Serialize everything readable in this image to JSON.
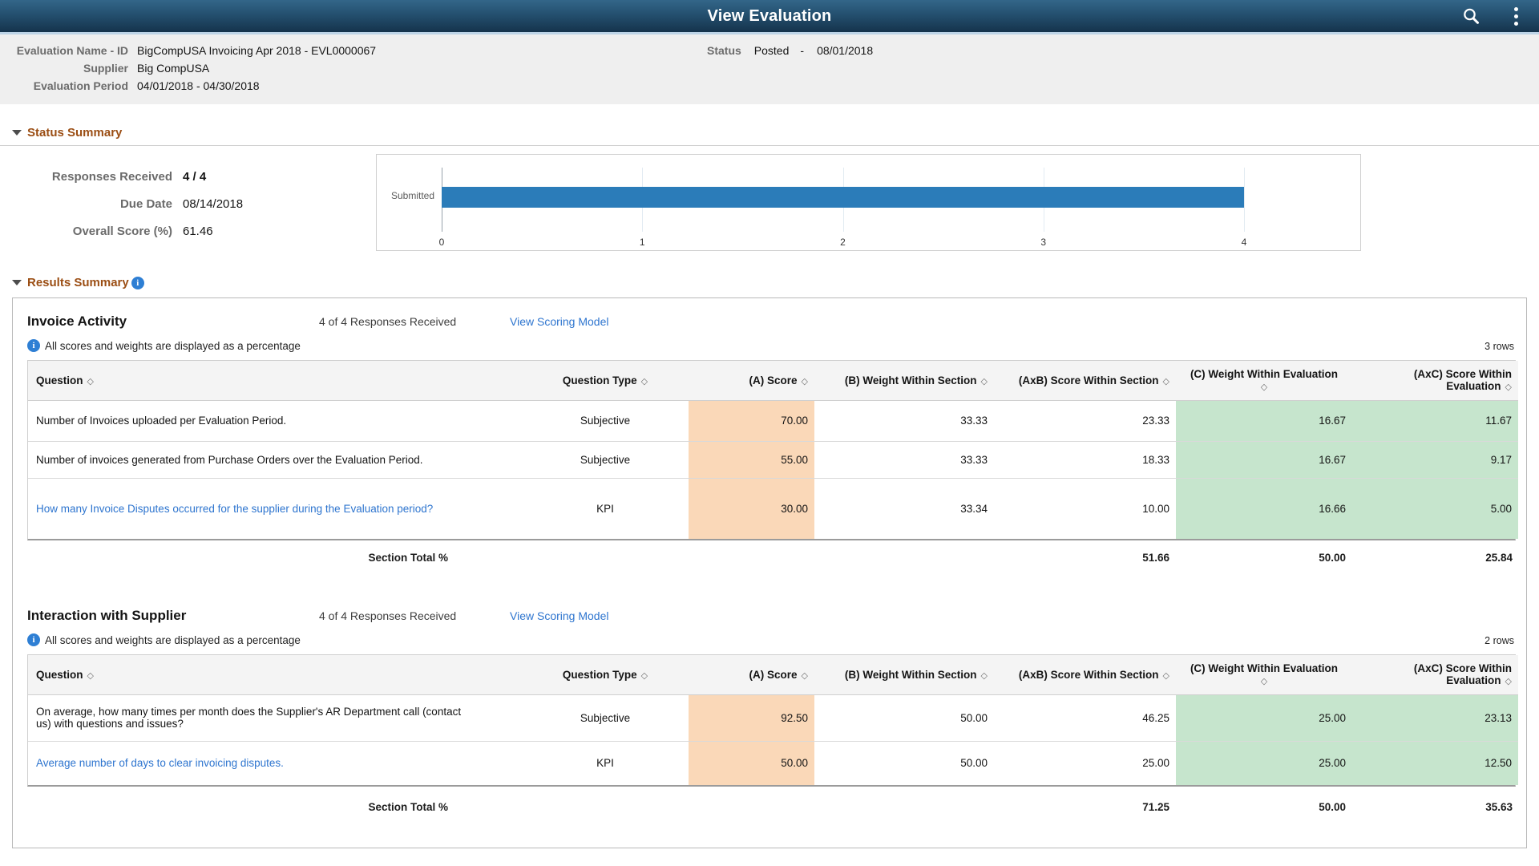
{
  "titlebar": {
    "title": "View Evaluation"
  },
  "icons": {
    "search": "search-icon",
    "more": "kebab-menu-icon",
    "info": "info-icon",
    "collapse": "triangle-down-icon",
    "sort": "sort-diamond-icon",
    "sort_glyph": "◇"
  },
  "info_header": {
    "rows": [
      {
        "label": "Evaluation Name - ID",
        "value": "BigCompUSA Invoicing Apr 2018 - EVL0000067"
      },
      {
        "label": "Supplier",
        "value": "Big CompUSA"
      },
      {
        "label": "Evaluation Period",
        "value": "04/01/2018 - 04/30/2018"
      }
    ],
    "status": {
      "label": "Status",
      "value": "Posted",
      "dash": "-",
      "date": "08/01/2018"
    }
  },
  "status_summary": {
    "heading": "Status Summary",
    "fields": [
      {
        "label": "Responses Received",
        "value": "4 / 4"
      },
      {
        "label": "Due Date",
        "value": "08/14/2018"
      },
      {
        "label": "Overall Score (%)",
        "value": "61.46"
      }
    ],
    "chart_data": {
      "type": "bar",
      "orientation": "horizontal",
      "title": "",
      "categories": [
        "Submitted"
      ],
      "values": [
        4
      ],
      "xlim": [
        0,
        4
      ],
      "xticks": [
        "0",
        "1",
        "2",
        "3",
        "4"
      ],
      "bar_color": "#2b7cb9",
      "grid": true,
      "legend": false
    }
  },
  "results_summary": {
    "heading": "Results Summary",
    "sections": [
      {
        "title": "Invoice Activity",
        "responses": "4 of 4 Responses Received",
        "scoring_link": "View Scoring Model",
        "note": "All scores and weights are displayed as a percentage",
        "row_count": "3 rows",
        "columns": {
          "question": "Question",
          "type": "Question Type",
          "score": "(A) Score",
          "weight_section": "(B) Weight Within Section",
          "score_section": "(AxB) Score Within Section",
          "weight_eval": "(C) Weight Within Evaluation",
          "score_eval": "(AxC) Score Within Evaluation"
        },
        "rows": [
          {
            "question": "Number of Invoices uploaded per Evaluation Period.",
            "type": "Subjective",
            "score": "70.00",
            "weight_section": "33.33",
            "score_section": "23.33",
            "weight_eval": "16.67",
            "score_eval": "11.67"
          },
          {
            "question": "Number of invoices generated from Purchase Orders over the Evaluation Period.",
            "type": "Subjective",
            "score": "55.00",
            "weight_section": "33.33",
            "score_section": "18.33",
            "weight_eval": "16.67",
            "score_eval": "9.17"
          },
          {
            "question": "How many Invoice Disputes occurred for the supplier during the Evaluation period?",
            "type": "KPI",
            "score": "30.00",
            "weight_section": "33.34",
            "score_section": "10.00",
            "weight_eval": "16.66",
            "score_eval": "5.00"
          }
        ],
        "total": {
          "label": "Section Total %",
          "score_section": "51.66",
          "weight_eval": "50.00",
          "score_eval": "25.84"
        }
      },
      {
        "title": "Interaction with Supplier",
        "responses": "4 of 4 Responses Received",
        "scoring_link": "View Scoring Model",
        "note": "All scores and weights are displayed as a percentage",
        "row_count": "2 rows",
        "columns": {
          "question": "Question",
          "type": "Question Type",
          "score": "(A) Score",
          "weight_section": "(B) Weight Within Section",
          "score_section": "(AxB) Score Within Section",
          "weight_eval": "(C) Weight Within Evaluation",
          "score_eval": "(AxC) Score Within Evaluation"
        },
        "rows": [
          {
            "question": "On average, how many times per month does the Supplier's AR Department call (contact us) with questions and issues?",
            "type": "Subjective",
            "score": "92.50",
            "weight_section": "50.00",
            "score_section": "46.25",
            "weight_eval": "25.00",
            "score_eval": "23.13"
          },
          {
            "question": "Average number of days to clear invoicing disputes.",
            "type": "KPI",
            "score": "50.00",
            "weight_section": "50.00",
            "score_section": "25.00",
            "weight_eval": "25.00",
            "score_eval": "12.50"
          }
        ],
        "total": {
          "label": "Section Total %",
          "score_section": "71.25",
          "weight_eval": "50.00",
          "score_eval": "35.63"
        }
      }
    ],
    "colors": {
      "score_bg": "#fad8b8",
      "eval_bg": "#c6e5cd",
      "link": "#2e75cf",
      "heading": "#9b4e14"
    }
  }
}
